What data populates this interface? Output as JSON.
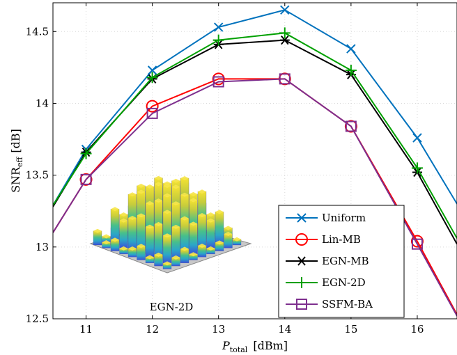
{
  "chart_data": {
    "type": "line",
    "title": "",
    "xlabel_main": "P",
    "xlabel_sub": "total",
    "xlabel_unit": "[dBm]",
    "ylabel_main": "SNR",
    "ylabel_sub": "eff",
    "ylabel_unit": "[dB]",
    "xlim": [
      10.5,
      16.6
    ],
    "ylim": [
      12.5,
      14.7
    ],
    "x_ticks": [
      11,
      12,
      13,
      14,
      15,
      16
    ],
    "y_ticks": [
      12.5,
      13,
      13.5,
      14,
      14.5
    ],
    "y_tick_labels": [
      "12.5",
      "13",
      "13.5",
      "14",
      "14.5"
    ],
    "x_tick_labels": [
      "11",
      "12",
      "13",
      "14",
      "15",
      "16"
    ],
    "grid": true,
    "legend_position": "bottom-right",
    "inset_label": "EGN-2D",
    "series": [
      {
        "name": "Uniform",
        "color": "#0072BD",
        "marker": "x",
        "x": [
          10.5,
          11,
          12,
          13,
          14,
          15,
          16,
          16.6
        ],
        "y": [
          13.29,
          13.68,
          14.23,
          14.53,
          14.65,
          14.38,
          13.76,
          13.3
        ]
      },
      {
        "name": "Lin-MB",
        "color": "#FF0000",
        "marker": "circle",
        "x": [
          10.5,
          11,
          12,
          13,
          14,
          15,
          16,
          16.6
        ],
        "y": [
          13.1,
          13.47,
          13.98,
          14.17,
          14.17,
          13.84,
          13.04,
          12.53
        ]
      },
      {
        "name": "EGN-MB",
        "color": "#000000",
        "marker": "asterisk",
        "x": [
          10.5,
          11,
          12,
          13,
          14,
          15,
          16,
          16.6
        ],
        "y": [
          13.28,
          13.66,
          14.17,
          14.41,
          14.44,
          14.2,
          13.52,
          13.02
        ]
      },
      {
        "name": "EGN-2D",
        "color": "#00A000",
        "marker": "plus",
        "x": [
          10.5,
          11,
          12,
          13,
          14,
          15,
          16,
          16.6
        ],
        "y": [
          13.29,
          13.65,
          14.18,
          14.44,
          14.49,
          14.23,
          13.55,
          13.06
        ]
      },
      {
        "name": "SSFM-BA",
        "color": "#7E2F8E",
        "marker": "square",
        "x": [
          10.5,
          11,
          12,
          13,
          14,
          15,
          16,
          16.6
        ],
        "y": [
          13.1,
          13.47,
          13.93,
          14.15,
          14.17,
          13.84,
          13.02,
          12.52
        ]
      }
    ]
  }
}
